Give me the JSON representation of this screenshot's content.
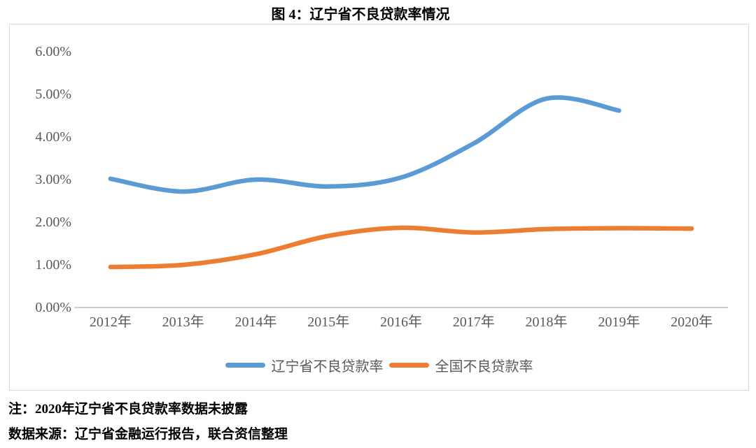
{
  "title": "图 4：辽宁省不良贷款率情况",
  "notes": {
    "note": "注：2020年辽宁省不良贷款率数据未披露",
    "source": "数据来源：辽宁省金融运行报告，联合资信整理"
  },
  "colors": {
    "axis_text": "#595959",
    "axis_line": "#BFBFBF",
    "frame_border": "#D9D9D9",
    "series_liaoning": "#5B9BD5",
    "series_national": "#ED7D31"
  },
  "chart_data": {
    "type": "line",
    "title": "图 4：辽宁省不良贷款率情况",
    "smooth": true,
    "grid": false,
    "legend_position": "bottom",
    "xlabel": "",
    "ylabel": "",
    "ylim": [
      0,
      6
    ],
    "y_ticks": [
      "6.00%",
      "5.00%",
      "4.00%",
      "3.00%",
      "2.00%",
      "1.00%",
      "0.00%"
    ],
    "categories": [
      "2012年",
      "2013年",
      "2014年",
      "2015年",
      "2016年",
      "2017年",
      "2018年",
      "2019年",
      "2020年"
    ],
    "series": [
      {
        "name": "辽宁省不良贷款率",
        "color": "#5B9BD5",
        "values": [
          3.02,
          2.72,
          3.0,
          2.84,
          3.05,
          3.85,
          4.9,
          4.62,
          null
        ]
      },
      {
        "name": "全国不良贷款率",
        "color": "#ED7D31",
        "values": [
          0.95,
          1.0,
          1.25,
          1.68,
          1.87,
          1.76,
          1.84,
          1.86,
          1.85
        ]
      }
    ]
  }
}
